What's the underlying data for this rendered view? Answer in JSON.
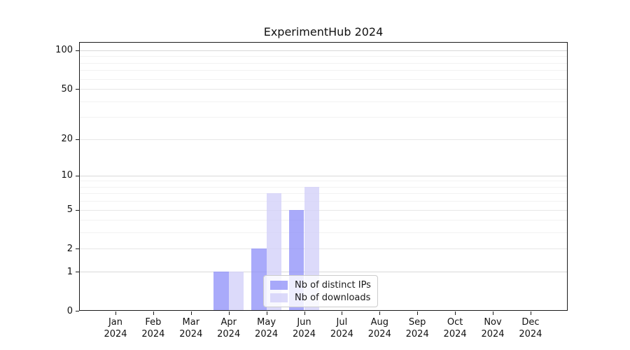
{
  "chart": {
    "title": "ExperimentHub 2024"
  },
  "chart_data": {
    "type": "bar",
    "title": "ExperimentHub 2024",
    "categories": [
      "Jan 2024",
      "Feb 2024",
      "Mar 2024",
      "Apr 2024",
      "May 2024",
      "Jun 2024",
      "Jul 2024",
      "Aug 2024",
      "Sep 2024",
      "Oct 2024",
      "Nov 2024",
      "Dec 2024"
    ],
    "series": [
      {
        "name": "Nb of distinct IPs",
        "color": "rgba(140, 141, 248, 0.75)",
        "color_hex": "#aaaaf9",
        "values": [
          0,
          0,
          0,
          1,
          2,
          5,
          0,
          0,
          0,
          0,
          0,
          0
        ]
      },
      {
        "name": "Nb of downloads",
        "color": "rgba(208, 206, 248, 0.75)",
        "color_hex": "#dbdaf9",
        "values": [
          0,
          0,
          0,
          1,
          7,
          8,
          0,
          0,
          0,
          0,
          0,
          0
        ]
      }
    ],
    "yscale": "log1p",
    "ylim": [
      0,
      116
    ],
    "y_major_ticks": [
      0,
      1,
      2,
      5,
      10,
      20,
      50,
      100
    ],
    "y_emphasized_gridlines": [
      1,
      10,
      100
    ],
    "y_minor_gridlines": [
      3,
      4,
      6,
      7,
      8,
      9,
      30,
      40,
      60,
      70,
      80,
      90
    ],
    "grid": "horizontal",
    "legend_position": "lower center",
    "grid_colors": {
      "emphasized": "#d8d8d8",
      "major": "#e7e7e7",
      "minor": "#f2f2f2"
    }
  }
}
